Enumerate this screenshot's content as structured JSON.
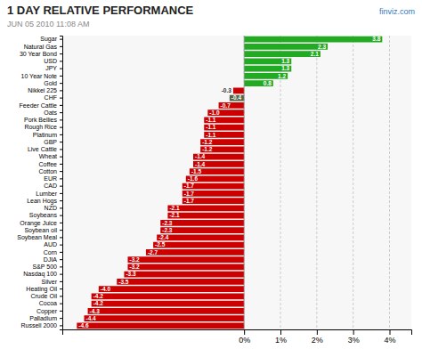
{
  "chart_data": {
    "type": "bar",
    "orientation": "horizontal",
    "title": "1 DAY RELATIVE PERFORMANCE",
    "subtitle": "JUN 05 2010 11:08 AM",
    "annotations": [
      {
        "text": "finviz.com"
      }
    ],
    "categories": [
      "Sugar",
      "Natural Gas",
      "30 Year Bond",
      "USD",
      "JPY",
      "10 Year Note",
      "Gold",
      "Nikkei 225",
      "CHF",
      "Feeder Cattle",
      "Oats",
      "Pork Bellies",
      "Rough Rice",
      "Platinum",
      "GBP",
      "Live Cattle",
      "Wheat",
      "Coffee",
      "Cotton",
      "EUR",
      "CAD",
      "Lumber",
      "Lean Hogs",
      "NZD",
      "Soybeans",
      "Orange Juice",
      "Soybean oil",
      "Soybean Meal",
      "AUD",
      "Corn",
      "DJIA",
      "S&P 500",
      "Nasdaq 100",
      "Silver",
      "Heating Oil",
      "Crude Oil",
      "Cocoa",
      "Copper",
      "Palladium",
      "Russell 2000"
    ],
    "values": [
      3.8,
      2.3,
      2.1,
      1.3,
      1.3,
      1.2,
      0.8,
      -0.3,
      -0.4,
      -0.7,
      -1.0,
      -1.1,
      -1.1,
      -1.1,
      -1.2,
      -1.2,
      -1.4,
      -1.4,
      -1.5,
      -1.6,
      -1.7,
      -1.7,
      -1.7,
      -2.1,
      -2.1,
      -2.3,
      -2.3,
      -2.4,
      -2.5,
      -2.7,
      -3.2,
      -3.2,
      -3.3,
      -3.5,
      -4.0,
      -4.2,
      -4.2,
      -4.3,
      -4.4,
      -4.6
    ],
    "value_labels": [
      "3.8",
      "2.3",
      "2.1",
      "1.3",
      "1.3",
      "1.2",
      "0.8",
      "-0.3",
      "-0.4",
      "-0.7",
      "-1.0",
      "-1.1",
      "-1.1",
      "-1.1",
      "-1.2",
      "-1.2",
      "-1.4",
      "-1.4",
      "-1.5",
      "-1.6",
      "-1.7",
      "-1.7",
      "-1.7",
      "-2.1",
      "-2.1",
      "-2.3",
      "-2.3",
      "-2.4",
      "-2.5",
      "-2.7",
      "-3.2",
      "-3.2",
      "-3.3",
      "-3.5",
      "-4.0",
      "-4.2",
      "-4.2",
      "-4.3",
      "-4.4",
      "-4.6"
    ],
    "colors": [
      "#22aa22",
      "#22aa22",
      "#22aa22",
      "#22aa22",
      "#22aa22",
      "#22aa22",
      "#22aa22",
      "#cc0000",
      "#556644",
      "#cc0000",
      "#cc0000",
      "#cc0000",
      "#cc0000",
      "#cc0000",
      "#cc0000",
      "#cc0000",
      "#cc0000",
      "#cc0000",
      "#cc0000",
      "#cc0000",
      "#cc0000",
      "#cc0000",
      "#cc0000",
      "#cc0000",
      "#cc0000",
      "#cc0000",
      "#cc0000",
      "#cc0000",
      "#cc0000",
      "#cc0000",
      "#cc0000",
      "#cc0000",
      "#cc0000",
      "#cc0000",
      "#cc0000",
      "#cc0000",
      "#cc0000",
      "#cc0000",
      "#cc0000",
      "#cc0000"
    ],
    "data_labels": true,
    "xlim": [
      -5.0,
      4.6
    ],
    "xticks": [
      {
        "value": 0,
        "label": "0%"
      },
      {
        "value": 1,
        "label": "1%"
      },
      {
        "value": 2,
        "label": "2%"
      },
      {
        "value": 3,
        "label": "3%"
      },
      {
        "value": 4,
        "label": "4%"
      }
    ],
    "grid": true
  }
}
